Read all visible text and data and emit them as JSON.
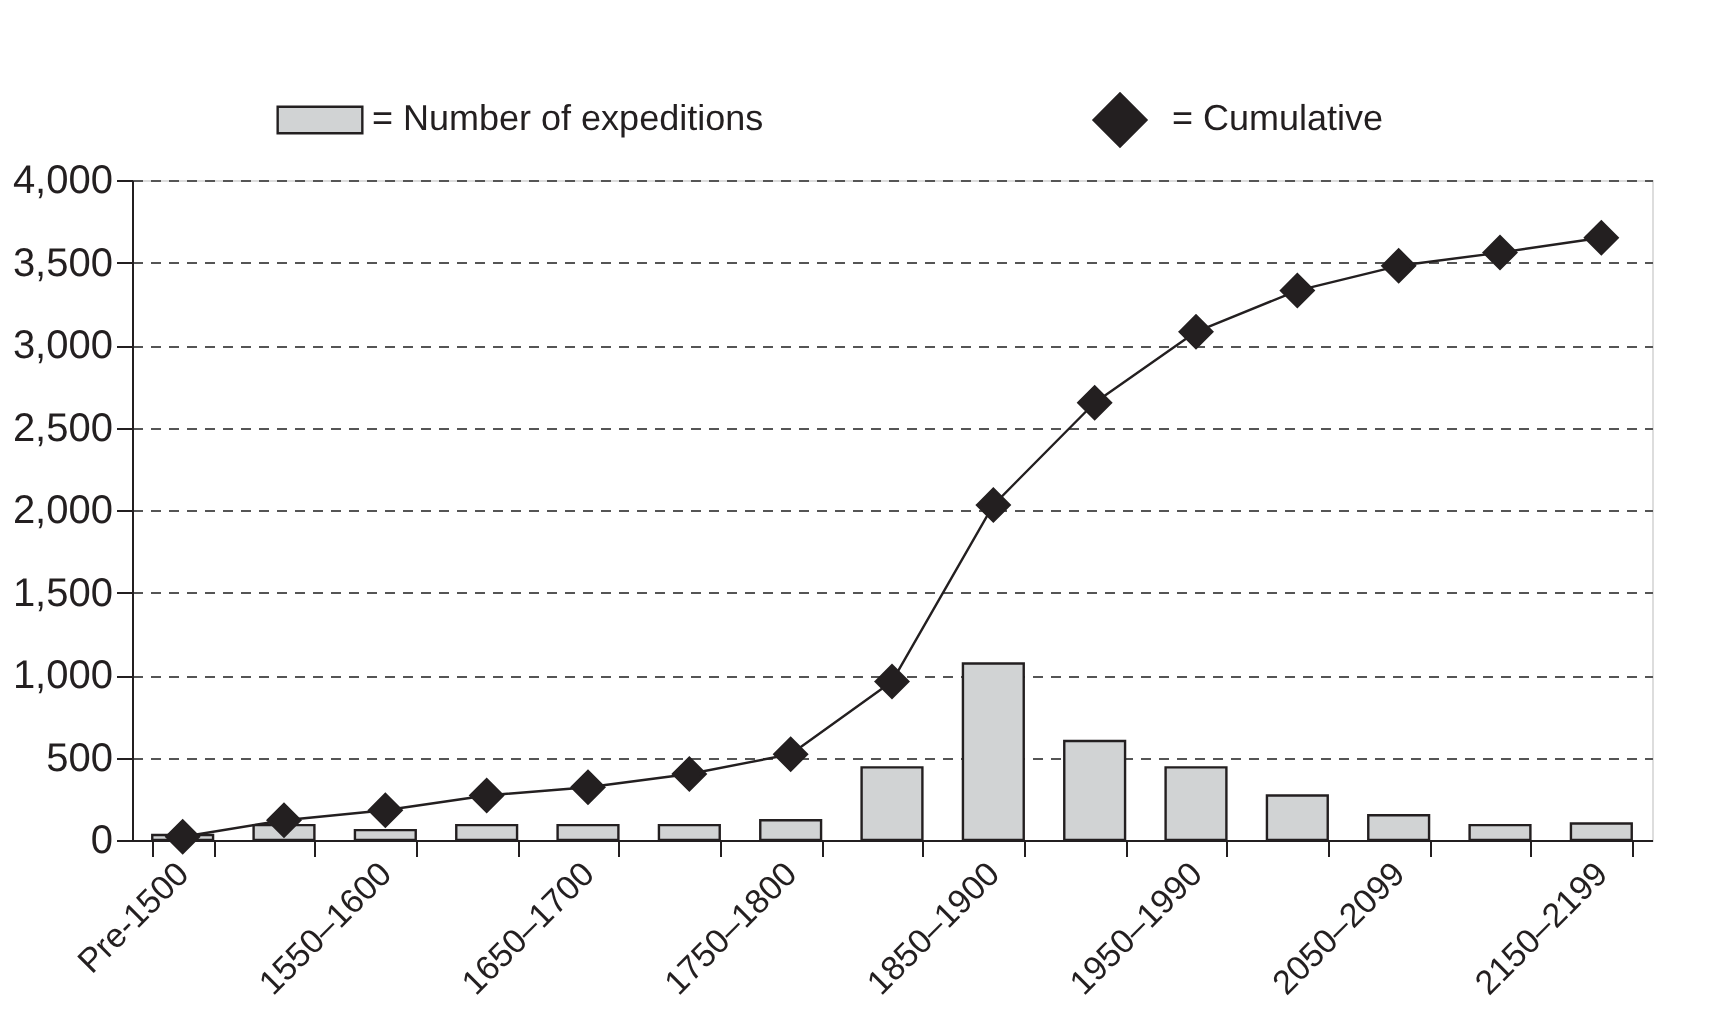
{
  "chart_data": {
    "type": "bar",
    "categories": [
      "Pre-1500",
      null,
      "1550–1600",
      null,
      "1650–1700",
      null,
      "1750–1800",
      null,
      "1850–1900",
      null,
      "1950–1990",
      null,
      "2050–2099",
      null,
      "2150–2199"
    ],
    "series": [
      {
        "name": "= Number of expeditions",
        "color": "#d1d3d4",
        "values": [
          30,
          90,
          60,
          90,
          90,
          90,
          120,
          440,
          1070,
          600,
          440,
          270,
          150,
          90,
          100
        ]
      },
      {
        "name": "= Cumulative",
        "type": "line",
        "color": "#231f20",
        "values": [
          20,
          120,
          180,
          270,
          320,
          400,
          520,
          960,
          2030,
          2650,
          3080,
          3330,
          3480,
          3560,
          3650
        ]
      }
    ],
    "ylim": [
      0,
      4000
    ],
    "yticks": [
      0,
      500,
      {
        "value": 1000,
        "label": "1,000"
      },
      {
        "value": 1500,
        "label": "1,500"
      },
      {
        "value": 2000,
        "label": "2,000"
      },
      {
        "value": 2500,
        "label": "2,500"
      },
      {
        "value": 3000,
        "label": "3,000"
      },
      {
        "value": 3500,
        "label": "3,500"
      },
      {
        "value": 4000,
        "label": "4,000"
      }
    ],
    "grid": "y",
    "legend": "top",
    "marker": "diamond"
  }
}
